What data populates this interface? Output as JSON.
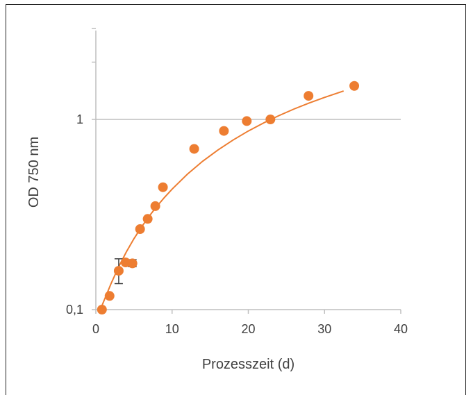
{
  "chart_data": {
    "type": "scatter",
    "xlabel": "Prozesszeit (d)",
    "ylabel": "OD 750 nm",
    "xlim": [
      0,
      40
    ],
    "ylim": [
      0.1,
      3
    ],
    "y_scale": "log",
    "x_ticks": [
      0,
      10,
      20,
      30,
      40
    ],
    "x_tick_labels": [
      "0",
      "10",
      "20",
      "30",
      "40"
    ],
    "y_ticks": [
      0.1,
      1
    ],
    "y_tick_labels": [
      "0,1",
      "1"
    ],
    "grid": "horizontal",
    "legend": "none",
    "colors": {
      "series": "#ED7D31",
      "axis": "#BFBFBF",
      "text": "#404040",
      "error_bar": "#404040"
    },
    "series": [
      {
        "points": [
          {
            "x": 0.8,
            "y": 0.1
          },
          {
            "x": 1.8,
            "y": 0.118
          },
          {
            "x": 3.0,
            "y": 0.16
          },
          {
            "x": 3.9,
            "y": 0.177
          },
          {
            "x": 4.8,
            "y": 0.175
          },
          {
            "x": 5.8,
            "y": 0.265
          },
          {
            "x": 6.8,
            "y": 0.3
          },
          {
            "x": 7.8,
            "y": 0.35
          },
          {
            "x": 8.8,
            "y": 0.44
          },
          {
            "x": 12.9,
            "y": 0.7
          },
          {
            "x": 16.8,
            "y": 0.87
          },
          {
            "x": 19.8,
            "y": 0.98
          },
          {
            "x": 22.9,
            "y": 1.0
          },
          {
            "x": 27.9,
            "y": 1.33
          },
          {
            "x": 33.9,
            "y": 1.5
          }
        ],
        "error_bars": [
          {
            "x": 3.0,
            "low": 0.137,
            "high": 0.185
          },
          {
            "x": 4.8,
            "low": 0.168,
            "high": 0.183
          }
        ]
      }
    ],
    "trendline": {
      "x": [
        0.8,
        2,
        3,
        4,
        5,
        6,
        7,
        8,
        9,
        10,
        12,
        14,
        16,
        18,
        20,
        22,
        24,
        26,
        28,
        30,
        32.5
      ],
      "y": [
        0.105,
        0.137,
        0.168,
        0.201,
        0.236,
        0.272,
        0.31,
        0.349,
        0.389,
        0.43,
        0.515,
        0.602,
        0.69,
        0.779,
        0.869,
        0.958,
        1.046,
        1.134,
        1.22,
        1.305,
        1.41
      ]
    }
  }
}
